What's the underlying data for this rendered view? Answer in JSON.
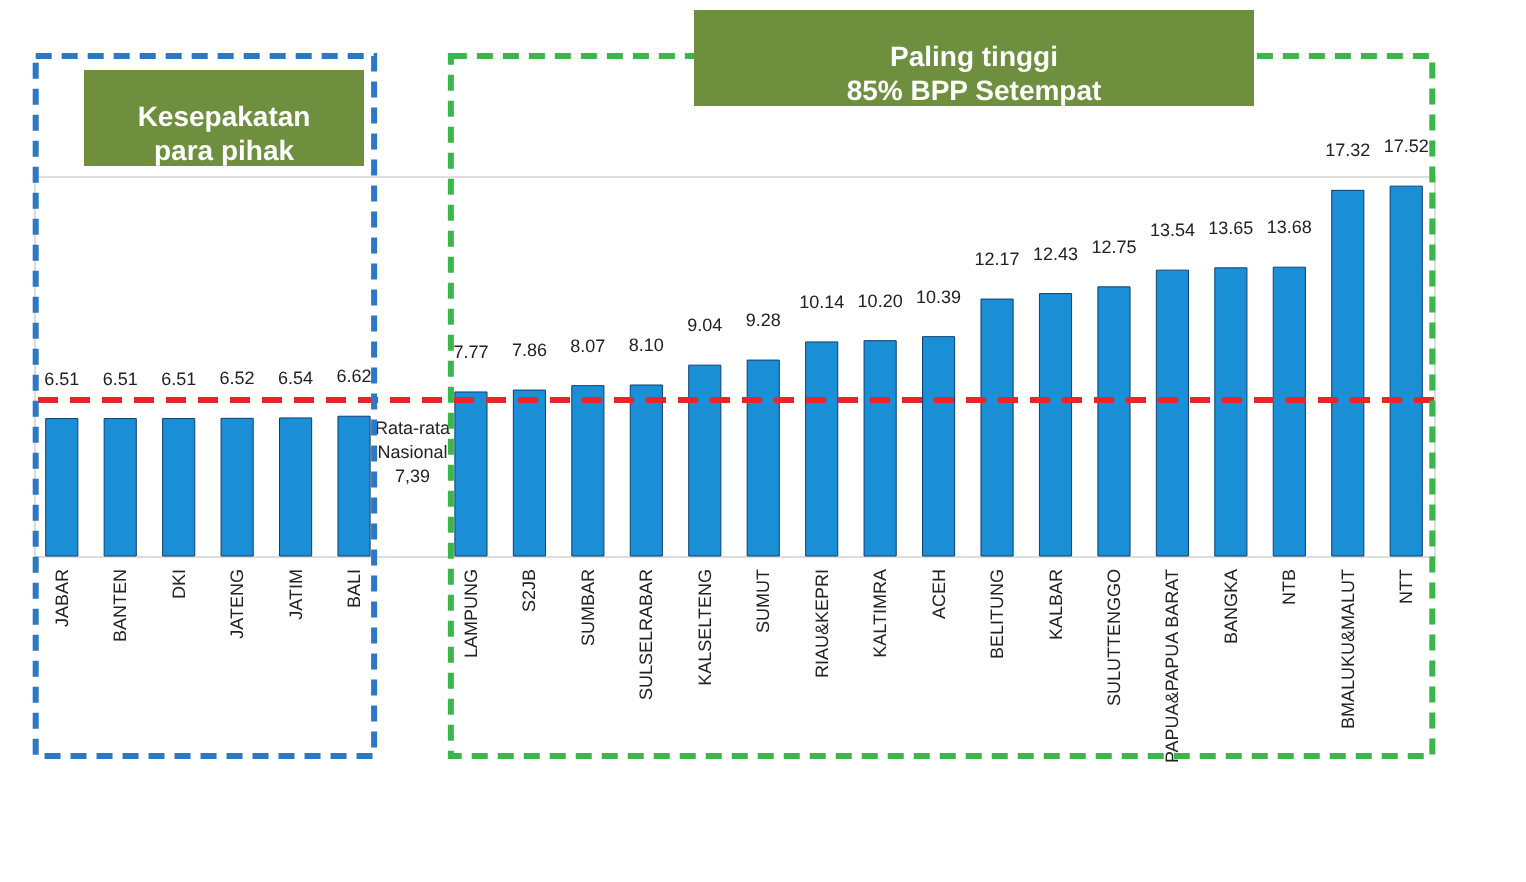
{
  "chart_data": {
    "type": "bar",
    "categories": [
      "JABAR",
      "BANTEN",
      "DKI",
      "JATENG",
      "JATIM",
      "BALI",
      null,
      "LAMPUNG",
      "S2JB",
      "SUMBAR",
      "SULSELRABAR",
      "KALSELTENG",
      "SUMUT",
      "RIAU&KEPRI",
      "KALTIMRA",
      "ACEH",
      "BELITUNG",
      "KALBAR",
      "SULUTTENGGO",
      "PAPUA&PAPUA BARAT",
      "BANGKA",
      "NTB",
      "BMALUKU&MALUT",
      "NTT"
    ],
    "values": [
      6.51,
      6.51,
      6.51,
      6.52,
      6.54,
      6.62,
      null,
      7.77,
      7.86,
      8.07,
      8.1,
      9.04,
      9.28,
      10.14,
      10.2,
      10.39,
      12.17,
      12.43,
      12.75,
      13.54,
      13.65,
      13.68,
      17.32,
      17.52
    ],
    "color": "#1a8fd6",
    "value_labels": [
      "6.51",
      "6.51",
      "6.51",
      "6.52",
      "6.54",
      "6.62",
      null,
      "7.77",
      "7.86",
      "8.07",
      "8.10",
      "9.04",
      "9.28",
      "10.14",
      "10.20",
      "10.39",
      "12.17",
      "12.43",
      "12.75",
      "13.54",
      "13.65",
      "13.68",
      "17.32",
      "17.52"
    ],
    "ref_lines": [
      {
        "axis": "y",
        "value": 7.39,
        "label": "Rata-rata Nasional 7,39",
        "color": "#e8262a",
        "line_style": "dashed"
      }
    ],
    "annotations": [
      "Kesepakatan\npara pihak",
      "Paling tinggi\n85% BPP Setempat"
    ],
    "grid": false
  }
}
